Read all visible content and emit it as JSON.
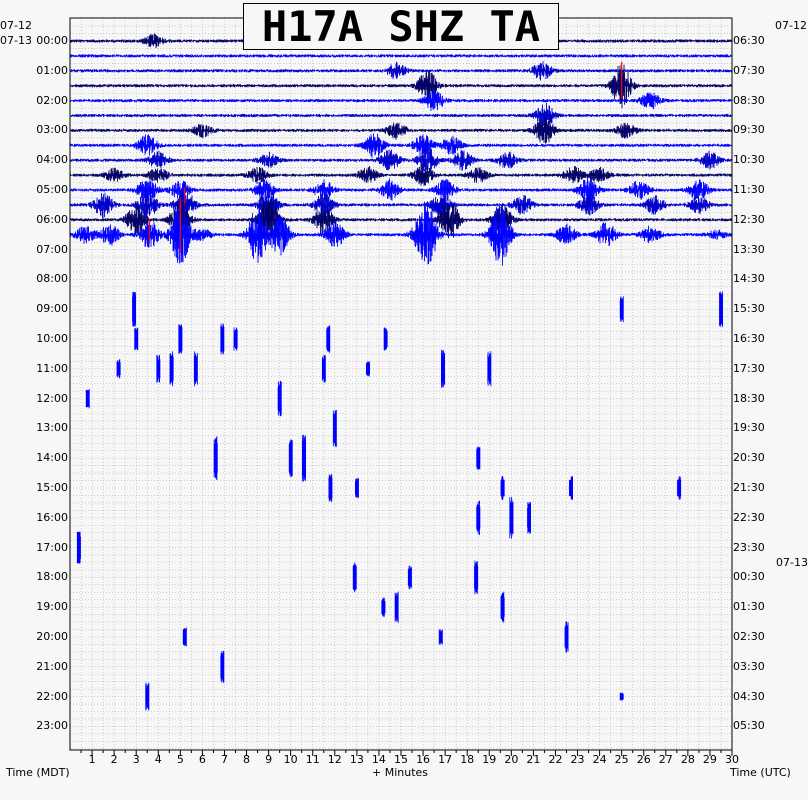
{
  "title": "H17A SHZ TA",
  "chart_data": {
    "type": "line",
    "title": "H17A SHZ TA",
    "xlabel": "+ Minutes",
    "left_axis_label": "Time (MDT)",
    "right_axis_label": "Time (UTC)",
    "x_ticks": [
      "1",
      "2",
      "3",
      "4",
      "5",
      "6",
      "7",
      "8",
      "9",
      "10",
      "11",
      "12",
      "13",
      "14",
      "15",
      "16",
      "17",
      "18",
      "19",
      "20",
      "21",
      "22",
      "23",
      "24",
      "25",
      "26",
      "27",
      "28",
      "29",
      "30"
    ],
    "xlim": [
      0,
      30
    ],
    "left_date_labels": [
      "07-12",
      "07-13"
    ],
    "right_date_labels": [
      "07-12",
      "07-13"
    ],
    "left_time_labels": [
      "00:00",
      "01:00",
      "02:00",
      "03:00",
      "04:00",
      "05:00",
      "06:00",
      "07:00",
      "08:00",
      "09:00",
      "10:00",
      "11:00",
      "12:00",
      "13:00",
      "14:00",
      "15:00",
      "16:00",
      "17:00",
      "18:00",
      "19:00",
      "20:00",
      "21:00",
      "22:00",
      "23:00"
    ],
    "right_time_labels": [
      "06:30",
      "07:30",
      "08:30",
      "09:30",
      "10:30",
      "11:30",
      "12:30",
      "13:30",
      "14:30",
      "15:30",
      "16:30",
      "17:30",
      "18:30",
      "19:30",
      "20:30",
      "21:30",
      "22:30",
      "23:30",
      "00:30",
      "01:30",
      "02:30",
      "03:30",
      "04:30",
      "05:30"
    ],
    "trace_colors": [
      "#000066",
      "#0000ff",
      "#0000cc"
    ],
    "clip_color": "#ff0000",
    "grid": true,
    "recorded_rows": 14,
    "trace_interval_minutes": 30,
    "events": [
      {
        "row": 0,
        "minute": 3.8,
        "amp": 6
      },
      {
        "row": 2,
        "minute": 14.8,
        "amp": 8
      },
      {
        "row": 2,
        "minute": 21.4,
        "amp": 9
      },
      {
        "row": 3,
        "minute": 16.2,
        "amp": 15
      },
      {
        "row": 3,
        "minute": 25.0,
        "amp": 22,
        "clip": true
      },
      {
        "row": 4,
        "minute": 16.5,
        "amp": 10
      },
      {
        "row": 4,
        "minute": 26.3,
        "amp": 8
      },
      {
        "row": 5,
        "minute": 21.5,
        "amp": 12
      },
      {
        "row": 6,
        "minute": 6.0,
        "amp": 6
      },
      {
        "row": 6,
        "minute": 14.8,
        "amp": 8
      },
      {
        "row": 6,
        "minute": 21.5,
        "amp": 14
      },
      {
        "row": 6,
        "minute": 25.2,
        "amp": 7
      },
      {
        "row": 7,
        "minute": 3.5,
        "amp": 10
      },
      {
        "row": 7,
        "minute": 13.8,
        "amp": 12
      },
      {
        "row": 7,
        "minute": 16.0,
        "amp": 10
      },
      {
        "row": 7,
        "minute": 17.3,
        "amp": 9
      },
      {
        "row": 8,
        "minute": 4.0,
        "amp": 8
      },
      {
        "row": 8,
        "minute": 9.0,
        "amp": 7
      },
      {
        "row": 8,
        "minute": 14.5,
        "amp": 10
      },
      {
        "row": 8,
        "minute": 16.2,
        "amp": 12
      },
      {
        "row": 8,
        "minute": 17.8,
        "amp": 9
      },
      {
        "row": 8,
        "minute": 19.8,
        "amp": 8
      },
      {
        "row": 8,
        "minute": 29.0,
        "amp": 8
      },
      {
        "row": 9,
        "minute": 2.0,
        "amp": 6
      },
      {
        "row": 9,
        "minute": 4.0,
        "amp": 7
      },
      {
        "row": 9,
        "minute": 8.5,
        "amp": 8
      },
      {
        "row": 9,
        "minute": 13.5,
        "amp": 8
      },
      {
        "row": 9,
        "minute": 16.0,
        "amp": 10
      },
      {
        "row": 9,
        "minute": 18.5,
        "amp": 7
      },
      {
        "row": 9,
        "minute": 22.8,
        "amp": 8
      },
      {
        "row": 9,
        "minute": 24.0,
        "amp": 7
      },
      {
        "row": 10,
        "minute": 3.5,
        "amp": 12
      },
      {
        "row": 10,
        "minute": 5.0,
        "amp": 9
      },
      {
        "row": 10,
        "minute": 8.8,
        "amp": 10
      },
      {
        "row": 10,
        "minute": 11.5,
        "amp": 10
      },
      {
        "row": 10,
        "minute": 14.5,
        "amp": 10
      },
      {
        "row": 10,
        "minute": 17.0,
        "amp": 10
      },
      {
        "row": 10,
        "minute": 23.5,
        "amp": 12
      },
      {
        "row": 10,
        "minute": 25.8,
        "amp": 9
      },
      {
        "row": 10,
        "minute": 28.5,
        "amp": 10
      },
      {
        "row": 11,
        "minute": 1.5,
        "amp": 12
      },
      {
        "row": 11,
        "minute": 3.5,
        "amp": 14
      },
      {
        "row": 11,
        "minute": 5.2,
        "amp": 16,
        "clip": true
      },
      {
        "row": 11,
        "minute": 9.0,
        "amp": 14
      },
      {
        "row": 11,
        "minute": 11.5,
        "amp": 12
      },
      {
        "row": 11,
        "minute": 16.8,
        "amp": 12
      },
      {
        "row": 11,
        "minute": 20.5,
        "amp": 10
      },
      {
        "row": 11,
        "minute": 23.5,
        "amp": 10
      },
      {
        "row": 11,
        "minute": 26.5,
        "amp": 9
      },
      {
        "row": 11,
        "minute": 28.5,
        "amp": 8
      },
      {
        "row": 12,
        "minute": 3.0,
        "amp": 16
      },
      {
        "row": 12,
        "minute": 5.0,
        "amp": 20,
        "clip": true
      },
      {
        "row": 12,
        "minute": 9.0,
        "amp": 25
      },
      {
        "row": 12,
        "minute": 11.5,
        "amp": 14
      },
      {
        "row": 12,
        "minute": 17.2,
        "amp": 20
      },
      {
        "row": 12,
        "minute": 19.6,
        "amp": 14
      },
      {
        "row": 13,
        "minute": 0.7,
        "amp": 8
      },
      {
        "row": 13,
        "minute": 1.8,
        "amp": 10
      },
      {
        "row": 13,
        "minute": 3.6,
        "amp": 14,
        "clip": true
      },
      {
        "row": 13,
        "minute": 5.0,
        "amp": 30,
        "clip": true
      },
      {
        "row": 13,
        "minute": 6.0,
        "amp": 5
      },
      {
        "row": 13,
        "minute": 8.5,
        "amp": 28
      },
      {
        "row": 13,
        "minute": 9.5,
        "amp": 20
      },
      {
        "row": 13,
        "minute": 12.0,
        "amp": 14
      },
      {
        "row": 13,
        "minute": 15.8,
        "amp": 7
      },
      {
        "row": 13,
        "minute": 16.2,
        "amp": 30
      },
      {
        "row": 13,
        "minute": 19.5,
        "amp": 34
      },
      {
        "row": 13,
        "minute": 22.5,
        "amp": 10
      },
      {
        "row": 13,
        "minute": 24.3,
        "amp": 12
      },
      {
        "row": 13,
        "minute": 26.3,
        "amp": 8
      },
      {
        "row": 13,
        "minute": 29.3,
        "amp": 4
      }
    ],
    "isolated_events": [
      {
        "hour": 9,
        "minute": 2.9,
        "amp": 18
      },
      {
        "hour": 9,
        "minute": 25.0,
        "amp": 14
      },
      {
        "hour": 9,
        "minute": 29.5,
        "amp": 20
      },
      {
        "hour": 10,
        "minute": 3.0,
        "amp": 12
      },
      {
        "hour": 10,
        "minute": 5.0,
        "amp": 16
      },
      {
        "hour": 10,
        "minute": 6.9,
        "amp": 16
      },
      {
        "hour": 10,
        "minute": 7.5,
        "amp": 12
      },
      {
        "hour": 10,
        "minute": 11.7,
        "amp": 14
      },
      {
        "hour": 10,
        "minute": 14.3,
        "amp": 12
      },
      {
        "hour": 11,
        "minute": 2.2,
        "amp": 10
      },
      {
        "hour": 11,
        "minute": 4.0,
        "amp": 14
      },
      {
        "hour": 11,
        "minute": 4.6,
        "amp": 18
      },
      {
        "hour": 11,
        "minute": 5.7,
        "amp": 18
      },
      {
        "hour": 11,
        "minute": 11.5,
        "amp": 14
      },
      {
        "hour": 11,
        "minute": 13.5,
        "amp": 8
      },
      {
        "hour": 11,
        "minute": 16.9,
        "amp": 20
      },
      {
        "hour": 11,
        "minute": 19.0,
        "amp": 18
      },
      {
        "hour": 12,
        "minute": 0.8,
        "amp": 10
      },
      {
        "hour": 12,
        "minute": 9.5,
        "amp": 18
      },
      {
        "hour": 13,
        "minute": 12.0,
        "amp": 20
      },
      {
        "hour": 14,
        "minute": 6.6,
        "amp": 22
      },
      {
        "hour": 14,
        "minute": 10.0,
        "amp": 22
      },
      {
        "hour": 14,
        "minute": 18.5,
        "amp": 12
      },
      {
        "hour": 14,
        "minute": 10.6,
        "amp": 24
      },
      {
        "hour": 15,
        "minute": 11.8,
        "amp": 14
      },
      {
        "hour": 15,
        "minute": 13.0,
        "amp": 10
      },
      {
        "hour": 15,
        "minute": 19.6,
        "amp": 12
      },
      {
        "hour": 15,
        "minute": 22.7,
        "amp": 12
      },
      {
        "hour": 15,
        "minute": 27.6,
        "amp": 12
      },
      {
        "hour": 16,
        "minute": 18.5,
        "amp": 18
      },
      {
        "hour": 16,
        "minute": 20.0,
        "amp": 22
      },
      {
        "hour": 16,
        "minute": 20.8,
        "amp": 16
      },
      {
        "hour": 17,
        "minute": 0.4,
        "amp": 16
      },
      {
        "hour": 18,
        "minute": 12.9,
        "amp": 16
      },
      {
        "hour": 18,
        "minute": 15.4,
        "amp": 12
      },
      {
        "hour": 18,
        "minute": 18.4,
        "amp": 18
      },
      {
        "hour": 19,
        "minute": 14.2,
        "amp": 10
      },
      {
        "hour": 19,
        "minute": 14.8,
        "amp": 16
      },
      {
        "hour": 19,
        "minute": 19.6,
        "amp": 16
      },
      {
        "hour": 20,
        "minute": 5.2,
        "amp": 10
      },
      {
        "hour": 20,
        "minute": 16.8,
        "amp": 8
      },
      {
        "hour": 20,
        "minute": 22.5,
        "amp": 16
      },
      {
        "hour": 21,
        "minute": 6.9,
        "amp": 16
      },
      {
        "hour": 22,
        "minute": 3.5,
        "amp": 14
      },
      {
        "hour": 22,
        "minute": 25.0,
        "amp": 4
      }
    ]
  }
}
